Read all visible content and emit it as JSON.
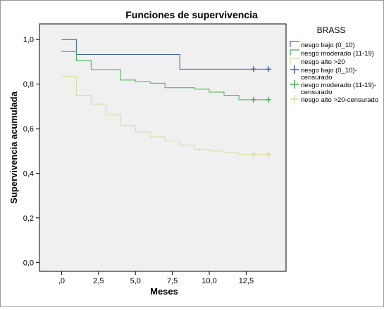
{
  "chart_data": {
    "type": "line",
    "step": true,
    "title": "Funciones de supervivencia",
    "xlabel": "Meses",
    "ylabel": "Supervivencia acumulada",
    "xlim": [
      -1.5,
      15.2
    ],
    "ylim": [
      -0.04,
      1.07
    ],
    "x_ticks": [
      0,
      2.5,
      5,
      7.5,
      10,
      12.5
    ],
    "x_tick_labels": [
      ",0",
      "2,5",
      "5,0",
      "7,5",
      "10,0",
      "12,5"
    ],
    "y_ticks": [
      0,
      0.2,
      0.4,
      0.6,
      0.8,
      1.0
    ],
    "y_tick_labels": [
      "0,0",
      "0,2",
      "0,4",
      "0,6",
      "0,8",
      "1,0"
    ],
    "grid": false,
    "legend_title": "BRASS",
    "legend_position": "right",
    "legend": [
      {
        "label": "riesgo bajo (0_10)",
        "color": "#3f5fa6",
        "kind": "line"
      },
      {
        "label": "riesgo moderado (11-19)",
        "color": "#3fb34f",
        "kind": "line"
      },
      {
        "label": "riesgo alto >20",
        "color": "#d9d9a0",
        "kind": "line"
      },
      {
        "label": "riesgo bajo (0_10)-censurado",
        "color": "#3f5fa6",
        "kind": "censor"
      },
      {
        "label": "riesgo moderado (11-19)-censurado",
        "color": "#3fb34f",
        "kind": "censor"
      },
      {
        "label": "riesgo alto >20-censurado",
        "color": "#d9d9a0",
        "kind": "censor"
      }
    ],
    "series": [
      {
        "name": "riesgo bajo (0_10)",
        "color": "#3f5fa6",
        "points": [
          [
            0,
            1.0
          ],
          [
            1,
            0.933
          ],
          [
            8,
            0.867
          ],
          [
            14,
            0.867
          ]
        ],
        "censored": [
          [
            13,
            0.867
          ],
          [
            14,
            0.867
          ]
        ]
      },
      {
        "name": "riesgo moderado (11-19)",
        "color": "#3fb34f",
        "points": [
          [
            0,
            0.946
          ],
          [
            1,
            0.905
          ],
          [
            2,
            0.865
          ],
          [
            4,
            0.818
          ],
          [
            5,
            0.811
          ],
          [
            6,
            0.804
          ],
          [
            7,
            0.784
          ],
          [
            9,
            0.777
          ],
          [
            10,
            0.764
          ],
          [
            11,
            0.75
          ],
          [
            12,
            0.73
          ],
          [
            14,
            0.73
          ]
        ],
        "censored": [
          [
            13,
            0.73
          ],
          [
            14,
            0.73
          ]
        ]
      },
      {
        "name": "riesgo alto >20",
        "color": "#d9d9a0",
        "points": [
          [
            0,
            0.835
          ],
          [
            1,
            0.75
          ],
          [
            2,
            0.71
          ],
          [
            3,
            0.662
          ],
          [
            4,
            0.613
          ],
          [
            5,
            0.585
          ],
          [
            6,
            0.563
          ],
          [
            7,
            0.545
          ],
          [
            8,
            0.527
          ],
          [
            9,
            0.508
          ],
          [
            10,
            0.5
          ],
          [
            11,
            0.492
          ],
          [
            12,
            0.485
          ],
          [
            14,
            0.485
          ]
        ],
        "censored": [
          [
            13,
            0.485
          ],
          [
            14,
            0.485
          ]
        ]
      }
    ]
  }
}
